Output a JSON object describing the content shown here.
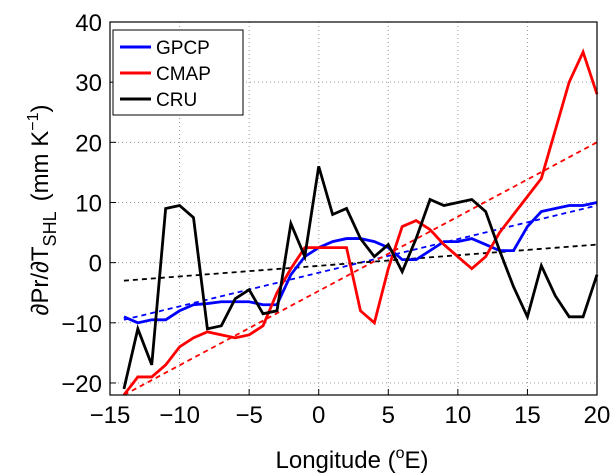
{
  "chart_data": {
    "type": "line",
    "x_label": {
      "main": "Longitude (",
      "sup": "o",
      "end": "E)"
    },
    "y_label": {
      "main": "∂Pr/∂T",
      "sub": "SHL",
      "unit": "(mm K",
      "sup": "−1",
      "end": ")"
    },
    "x": [
      -14,
      -13,
      -12,
      -11,
      -10,
      -9,
      -8,
      -7,
      -6,
      -5,
      -4,
      -3,
      -2,
      -1,
      0,
      1,
      2,
      3,
      4,
      5,
      6,
      7,
      8,
      9,
      10,
      11,
      12,
      13,
      14,
      15,
      16,
      17,
      18,
      19,
      20
    ],
    "series": [
      {
        "name": "GPCP",
        "color": "#0000ff",
        "values": [
          -9,
          -10,
          -9.5,
          -9.5,
          -8,
          -7,
          -6.8,
          -6.5,
          -6.5,
          -6.5,
          -7,
          -7,
          -2,
          1,
          2.5,
          3.5,
          4,
          4,
          3.5,
          2.5,
          0.5,
          0.5,
          2,
          3.5,
          3.5,
          4,
          3,
          2,
          2,
          6,
          8.5,
          9,
          9.5,
          9.5,
          10
        ]
      },
      {
        "name": "CMAP",
        "color": "#ff0000",
        "values": [
          -22,
          -19,
          -19,
          -17,
          -14,
          -12.5,
          -11.5,
          -12,
          -12.5,
          -12,
          -10.5,
          -5,
          -1,
          2.5,
          2.5,
          2.5,
          2.5,
          -8,
          -10,
          -1,
          6,
          7,
          5.5,
          3,
          1,
          -1,
          1,
          5,
          8,
          11,
          14,
          22,
          30,
          35,
          28
        ]
      },
      {
        "name": "CRU",
        "color": "#000000",
        "values": [
          -21,
          -11,
          -17,
          9,
          9.5,
          7.5,
          -11,
          -10.5,
          -6,
          -4.5,
          -8.5,
          -8,
          6.5,
          1,
          16,
          8,
          9,
          4,
          1,
          3,
          -1.5,
          4,
          10.5,
          9.5,
          10,
          10.5,
          8.5,
          2,
          -4,
          -9,
          -0.5,
          -5.5,
          -9,
          -9,
          -2
        ]
      }
    ],
    "trends": [
      {
        "color": "#0000ff",
        "x": [
          -14,
          20
        ],
        "values": [
          -9.5,
          9.5
        ]
      },
      {
        "color": "#ff0000",
        "x": [
          -14,
          20
        ],
        "values": [
          -22,
          20
        ]
      },
      {
        "color": "#000000",
        "x": [
          -14,
          20
        ],
        "values": [
          -3,
          3
        ]
      }
    ],
    "xlim": [
      -15,
      20
    ],
    "xticks": [
      {
        "value": -15,
        "label": "−15"
      },
      {
        "value": -10,
        "label": "−10"
      },
      {
        "value": -5,
        "label": "−5"
      },
      0,
      5,
      10,
      15,
      20
    ],
    "ylim": [
      -22,
      40
    ],
    "yticks": [
      {
        "value": -20,
        "label": "−20"
      },
      {
        "value": -10,
        "label": "−10"
      },
      0,
      10,
      20,
      30,
      40
    ],
    "grid": true,
    "legend": "upper-left"
  }
}
